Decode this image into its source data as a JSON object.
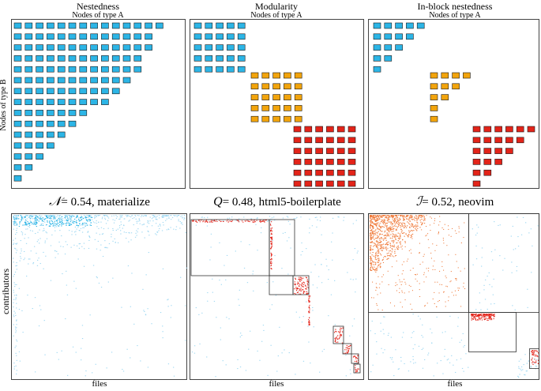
{
  "top_row": {
    "panels": [
      {
        "title": "Nestedness",
        "subtitle": "Nodes of type A"
      },
      {
        "title": "Modularity",
        "subtitle": "Nodes of type A"
      },
      {
        "title": "In-block nestedness",
        "subtitle": "Nodes of type A"
      }
    ],
    "y_axis_label": "Nodes of type B"
  },
  "bottom_row": {
    "panels": [
      {
        "symbol": "𝒩",
        "metric_text": "= 0.54, materialize",
        "x_label": "files"
      },
      {
        "symbol": "Q",
        "metric_text": "= 0.48, html5-boilerplate",
        "x_label": "files"
      },
      {
        "symbol": "ℐ",
        "metric_text": "= 0.52, neovim",
        "x_label": "files"
      }
    ],
    "y_axis_label": "contributors"
  },
  "colors": {
    "blue": "#2cb5e6",
    "orange": "#f2a40c",
    "red": "#e32419",
    "light_blue": "#9fd8f2",
    "orange_dots": "#ef7a3a",
    "frame": "#444444"
  },
  "diagram_data": {
    "nestedness_row_lengths": [
      14,
      13,
      13,
      12,
      12,
      11,
      10,
      9,
      7,
      6,
      5,
      4,
      3,
      2,
      1
    ],
    "modularity_blocks": [
      {
        "color": "blue",
        "rows": 5,
        "cols": 5
      },
      {
        "color": "orange",
        "rows": 5,
        "cols": 5
      },
      {
        "color": "red",
        "rows": 6,
        "cols": 6
      }
    ],
    "inblock_blocks": [
      {
        "color": "blue",
        "row_lengths": [
          5,
          4,
          3,
          2,
          1
        ]
      },
      {
        "color": "orange",
        "row_lengths": [
          4,
          3,
          2,
          1,
          1
        ]
      },
      {
        "color": "red",
        "row_lengths": [
          6,
          5,
          4,
          3,
          2,
          1
        ]
      }
    ]
  }
}
